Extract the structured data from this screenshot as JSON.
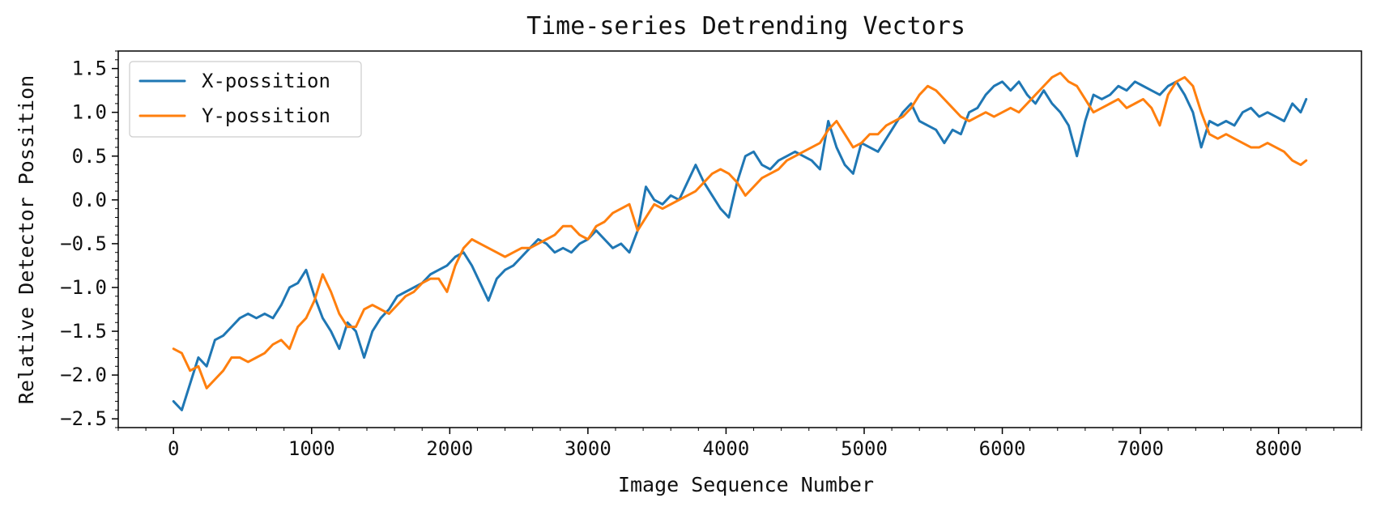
{
  "chart_data": {
    "type": "line",
    "title": "Time-series Detrending Vectors",
    "xlabel": "Image Sequence Number",
    "ylabel": "Relative Detector Possition",
    "xlim": [
      -400,
      8600
    ],
    "ylim": [
      -2.6,
      1.7
    ],
    "xticks": [
      0,
      1000,
      2000,
      3000,
      4000,
      5000,
      6000,
      7000,
      8000
    ],
    "yticks": [
      -2.5,
      -2.0,
      -1.5,
      -1.0,
      -0.5,
      0.0,
      0.5,
      1.0,
      1.5
    ],
    "xtick_labels": [
      "0",
      "1000",
      "2000",
      "3000",
      "4000",
      "5000",
      "6000",
      "7000",
      "8000"
    ],
    "ytick_labels": [
      "−2.5",
      "−2.0",
      "−1.5",
      "−1.0",
      "−0.5",
      "0.0",
      "0.5",
      "1.0",
      "1.5"
    ],
    "legend_position": "top-left",
    "grid": false,
    "series": [
      {
        "name": "X-possition",
        "color": "#1f77b4",
        "points": [
          [
            0,
            -2.3
          ],
          [
            60,
            -2.4
          ],
          [
            120,
            -2.1
          ],
          [
            180,
            -1.8
          ],
          [
            240,
            -1.9
          ],
          [
            300,
            -1.6
          ],
          [
            360,
            -1.55
          ],
          [
            420,
            -1.45
          ],
          [
            480,
            -1.35
          ],
          [
            540,
            -1.3
          ],
          [
            600,
            -1.35
          ],
          [
            660,
            -1.3
          ],
          [
            720,
            -1.35
          ],
          [
            780,
            -1.2
          ],
          [
            840,
            -1.0
          ],
          [
            900,
            -0.95
          ],
          [
            960,
            -0.8
          ],
          [
            1020,
            -1.1
          ],
          [
            1080,
            -1.35
          ],
          [
            1140,
            -1.5
          ],
          [
            1200,
            -1.7
          ],
          [
            1260,
            -1.4
          ],
          [
            1320,
            -1.5
          ],
          [
            1380,
            -1.8
          ],
          [
            1440,
            -1.5
          ],
          [
            1500,
            -1.35
          ],
          [
            1560,
            -1.25
          ],
          [
            1620,
            -1.1
          ],
          [
            1680,
            -1.05
          ],
          [
            1740,
            -1.0
          ],
          [
            1800,
            -0.95
          ],
          [
            1860,
            -0.85
          ],
          [
            1920,
            -0.8
          ],
          [
            1980,
            -0.75
          ],
          [
            2040,
            -0.65
          ],
          [
            2100,
            -0.6
          ],
          [
            2160,
            -0.75
          ],
          [
            2220,
            -0.95
          ],
          [
            2280,
            -1.15
          ],
          [
            2340,
            -0.9
          ],
          [
            2400,
            -0.8
          ],
          [
            2460,
            -0.75
          ],
          [
            2520,
            -0.65
          ],
          [
            2580,
            -0.55
          ],
          [
            2640,
            -0.45
          ],
          [
            2700,
            -0.5
          ],
          [
            2760,
            -0.6
          ],
          [
            2820,
            -0.55
          ],
          [
            2880,
            -0.6
          ],
          [
            2940,
            -0.5
          ],
          [
            3000,
            -0.45
          ],
          [
            3060,
            -0.35
          ],
          [
            3120,
            -0.45
          ],
          [
            3180,
            -0.55
          ],
          [
            3240,
            -0.5
          ],
          [
            3300,
            -0.6
          ],
          [
            3360,
            -0.35
          ],
          [
            3420,
            0.15
          ],
          [
            3480,
            0.0
          ],
          [
            3540,
            -0.05
          ],
          [
            3600,
            0.05
          ],
          [
            3660,
            0.0
          ],
          [
            3720,
            0.2
          ],
          [
            3780,
            0.4
          ],
          [
            3840,
            0.2
          ],
          [
            3900,
            0.05
          ],
          [
            3960,
            -0.1
          ],
          [
            4020,
            -0.2
          ],
          [
            4080,
            0.2
          ],
          [
            4140,
            0.5
          ],
          [
            4200,
            0.55
          ],
          [
            4260,
            0.4
          ],
          [
            4320,
            0.35
          ],
          [
            4380,
            0.45
          ],
          [
            4440,
            0.5
          ],
          [
            4500,
            0.55
          ],
          [
            4560,
            0.5
          ],
          [
            4620,
            0.45
          ],
          [
            4680,
            0.35
          ],
          [
            4740,
            0.9
          ],
          [
            4800,
            0.6
          ],
          [
            4860,
            0.4
          ],
          [
            4920,
            0.3
          ],
          [
            4980,
            0.65
          ],
          [
            5040,
            0.6
          ],
          [
            5100,
            0.55
          ],
          [
            5160,
            0.7
          ],
          [
            5220,
            0.85
          ],
          [
            5280,
            1.0
          ],
          [
            5340,
            1.1
          ],
          [
            5400,
            0.9
          ],
          [
            5460,
            0.85
          ],
          [
            5520,
            0.8
          ],
          [
            5580,
            0.65
          ],
          [
            5640,
            0.8
          ],
          [
            5700,
            0.75
          ],
          [
            5760,
            1.0
          ],
          [
            5820,
            1.05
          ],
          [
            5880,
            1.2
          ],
          [
            5940,
            1.3
          ],
          [
            6000,
            1.35
          ],
          [
            6060,
            1.25
          ],
          [
            6120,
            1.35
          ],
          [
            6180,
            1.2
          ],
          [
            6240,
            1.1
          ],
          [
            6300,
            1.25
          ],
          [
            6360,
            1.1
          ],
          [
            6420,
            1.0
          ],
          [
            6480,
            0.85
          ],
          [
            6540,
            0.5
          ],
          [
            6600,
            0.9
          ],
          [
            6660,
            1.2
          ],
          [
            6720,
            1.15
          ],
          [
            6780,
            1.2
          ],
          [
            6840,
            1.3
          ],
          [
            6900,
            1.25
          ],
          [
            6960,
            1.35
          ],
          [
            7020,
            1.3
          ],
          [
            7080,
            1.25
          ],
          [
            7140,
            1.2
          ],
          [
            7200,
            1.3
          ],
          [
            7260,
            1.35
          ],
          [
            7320,
            1.2
          ],
          [
            7380,
            1.0
          ],
          [
            7440,
            0.6
          ],
          [
            7500,
            0.9
          ],
          [
            7560,
            0.85
          ],
          [
            7620,
            0.9
          ],
          [
            7680,
            0.85
          ],
          [
            7740,
            1.0
          ],
          [
            7800,
            1.05
          ],
          [
            7860,
            0.95
          ],
          [
            7920,
            1.0
          ],
          [
            7980,
            0.95
          ],
          [
            8040,
            0.9
          ],
          [
            8100,
            1.1
          ],
          [
            8160,
            1.0
          ],
          [
            8200,
            1.15
          ]
        ]
      },
      {
        "name": "Y-possition",
        "color": "#ff7f0e",
        "points": [
          [
            0,
            -1.7
          ],
          [
            60,
            -1.75
          ],
          [
            120,
            -1.95
          ],
          [
            180,
            -1.9
          ],
          [
            240,
            -2.15
          ],
          [
            300,
            -2.05
          ],
          [
            360,
            -1.95
          ],
          [
            420,
            -1.8
          ],
          [
            480,
            -1.8
          ],
          [
            540,
            -1.85
          ],
          [
            600,
            -1.8
          ],
          [
            660,
            -1.75
          ],
          [
            720,
            -1.65
          ],
          [
            780,
            -1.6
          ],
          [
            840,
            -1.7
          ],
          [
            900,
            -1.45
          ],
          [
            960,
            -1.35
          ],
          [
            1020,
            -1.15
          ],
          [
            1080,
            -0.85
          ],
          [
            1140,
            -1.05
          ],
          [
            1200,
            -1.3
          ],
          [
            1260,
            -1.45
          ],
          [
            1320,
            -1.45
          ],
          [
            1380,
            -1.25
          ],
          [
            1440,
            -1.2
          ],
          [
            1500,
            -1.25
          ],
          [
            1560,
            -1.3
          ],
          [
            1620,
            -1.2
          ],
          [
            1680,
            -1.1
          ],
          [
            1740,
            -1.05
          ],
          [
            1800,
            -0.95
          ],
          [
            1860,
            -0.9
          ],
          [
            1920,
            -0.9
          ],
          [
            1980,
            -1.05
          ],
          [
            2040,
            -0.75
          ],
          [
            2100,
            -0.55
          ],
          [
            2160,
            -0.45
          ],
          [
            2220,
            -0.5
          ],
          [
            2280,
            -0.55
          ],
          [
            2340,
            -0.6
          ],
          [
            2400,
            -0.65
          ],
          [
            2460,
            -0.6
          ],
          [
            2520,
            -0.55
          ],
          [
            2580,
            -0.55
          ],
          [
            2640,
            -0.5
          ],
          [
            2700,
            -0.45
          ],
          [
            2760,
            -0.4
          ],
          [
            2820,
            -0.3
          ],
          [
            2880,
            -0.3
          ],
          [
            2940,
            -0.4
          ],
          [
            3000,
            -0.45
          ],
          [
            3060,
            -0.3
          ],
          [
            3120,
            -0.25
          ],
          [
            3180,
            -0.15
          ],
          [
            3240,
            -0.1
          ],
          [
            3300,
            -0.05
          ],
          [
            3360,
            -0.35
          ],
          [
            3420,
            -0.2
          ],
          [
            3480,
            -0.05
          ],
          [
            3540,
            -0.1
          ],
          [
            3600,
            -0.05
          ],
          [
            3660,
            0.0
          ],
          [
            3720,
            0.05
          ],
          [
            3780,
            0.1
          ],
          [
            3840,
            0.2
          ],
          [
            3900,
            0.3
          ],
          [
            3960,
            0.35
          ],
          [
            4020,
            0.3
          ],
          [
            4080,
            0.2
          ],
          [
            4140,
            0.05
          ],
          [
            4200,
            0.15
          ],
          [
            4260,
            0.25
          ],
          [
            4320,
            0.3
          ],
          [
            4380,
            0.35
          ],
          [
            4440,
            0.45
          ],
          [
            4500,
            0.5
          ],
          [
            4560,
            0.55
          ],
          [
            4620,
            0.6
          ],
          [
            4680,
            0.65
          ],
          [
            4740,
            0.8
          ],
          [
            4800,
            0.9
          ],
          [
            4860,
            0.75
          ],
          [
            4920,
            0.6
          ],
          [
            4980,
            0.65
          ],
          [
            5040,
            0.75
          ],
          [
            5100,
            0.75
          ],
          [
            5160,
            0.85
          ],
          [
            5220,
            0.9
          ],
          [
            5280,
            0.95
          ],
          [
            5340,
            1.05
          ],
          [
            5400,
            1.2
          ],
          [
            5460,
            1.3
          ],
          [
            5520,
            1.25
          ],
          [
            5580,
            1.15
          ],
          [
            5640,
            1.05
          ],
          [
            5700,
            0.95
          ],
          [
            5760,
            0.9
          ],
          [
            5820,
            0.95
          ],
          [
            5880,
            1.0
          ],
          [
            5940,
            0.95
          ],
          [
            6000,
            1.0
          ],
          [
            6060,
            1.05
          ],
          [
            6120,
            1.0
          ],
          [
            6180,
            1.1
          ],
          [
            6240,
            1.2
          ],
          [
            6300,
            1.3
          ],
          [
            6360,
            1.4
          ],
          [
            6420,
            1.45
          ],
          [
            6480,
            1.35
          ],
          [
            6540,
            1.3
          ],
          [
            6600,
            1.15
          ],
          [
            6660,
            1.0
          ],
          [
            6720,
            1.05
          ],
          [
            6780,
            1.1
          ],
          [
            6840,
            1.15
          ],
          [
            6900,
            1.05
          ],
          [
            6960,
            1.1
          ],
          [
            7020,
            1.15
          ],
          [
            7080,
            1.05
          ],
          [
            7140,
            0.85
          ],
          [
            7200,
            1.2
          ],
          [
            7260,
            1.35
          ],
          [
            7320,
            1.4
          ],
          [
            7380,
            1.3
          ],
          [
            7440,
            1.0
          ],
          [
            7500,
            0.75
          ],
          [
            7560,
            0.7
          ],
          [
            7620,
            0.75
          ],
          [
            7680,
            0.7
          ],
          [
            7740,
            0.65
          ],
          [
            7800,
            0.6
          ],
          [
            7860,
            0.6
          ],
          [
            7920,
            0.65
          ],
          [
            7980,
            0.6
          ],
          [
            8040,
            0.55
          ],
          [
            8100,
            0.45
          ],
          [
            8160,
            0.4
          ],
          [
            8200,
            0.45
          ]
        ]
      }
    ]
  }
}
